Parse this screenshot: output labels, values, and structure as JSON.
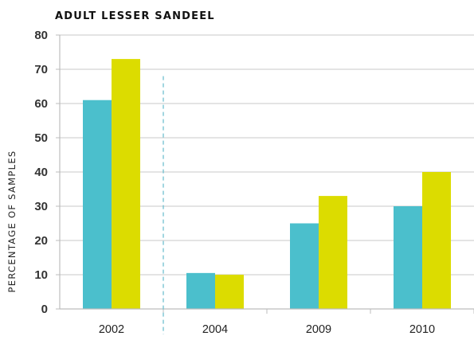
{
  "chart_data": {
    "type": "bar",
    "title": "ADULT LESSER SANDEEL",
    "xlabel": "",
    "ylabel": "PERCENTAGE OF SAMPLES",
    "categories": [
      "2002",
      "2004",
      "2009",
      "2010"
    ],
    "series": [
      {
        "color": "#4bbfcc",
        "values": [
          61,
          10.5,
          25,
          30
        ]
      },
      {
        "color": "#dcdc00",
        "values": [
          73,
          10,
          33,
          40
        ]
      }
    ],
    "ylim": [
      0,
      80
    ],
    "yticks": [
      "0",
      "10",
      "20",
      "30",
      "40",
      "50",
      "60",
      "70",
      "80"
    ],
    "grid": true,
    "legend": "none",
    "divider_after_category": 0,
    "grid_color": "#c8c8c8",
    "axis_color": "#bdbdbd",
    "divider_color": "#6fbfcf"
  }
}
